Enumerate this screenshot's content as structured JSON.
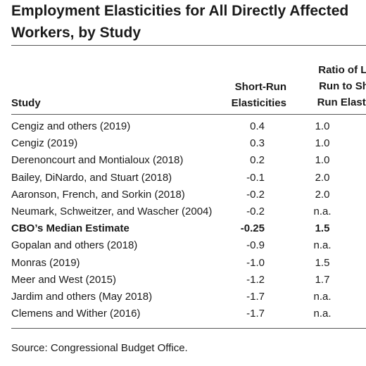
{
  "title": {
    "line1": "Employment Elasticities for All Directly Affected",
    "line2": "Workers, by Study"
  },
  "columns": {
    "study": "Study",
    "short_line1": "Short-Run",
    "short_line2": "Elasticities",
    "ratio_line1": "Ratio of Lon",
    "ratio_line2": "Run to Shor",
    "ratio_line3": "Run Elasticit"
  },
  "rows": [
    {
      "study": "Cengiz and others (2019)",
      "short": "0.4",
      "ratio": "1.0"
    },
    {
      "study": "Cengiz (2019)",
      "short": "0.3",
      "ratio": "1.0"
    },
    {
      "study": "Derenoncourt and Montialoux (2018)",
      "short": "0.2",
      "ratio": "1.0"
    },
    {
      "study": "Bailey, DiNardo, and Stuart (2018)",
      "short": "-0.1",
      "ratio": "2.0"
    },
    {
      "study": "Aaronson, French, and Sorkin (2018)",
      "short": "-0.2",
      "ratio": "2.0"
    },
    {
      "study": "Neumark, Schweitzer, and Wascher (2004)",
      "short": "-0.2",
      "ratio": "n.a."
    },
    {
      "study": "CBO’s Median Estimate",
      "short": "-0.25",
      "ratio": "1.5"
    },
    {
      "study": "Gopalan and others (2018)",
      "short": "-0.9",
      "ratio": "n.a."
    },
    {
      "study": "Monras (2019)",
      "short": "-1.0",
      "ratio": "1.5"
    },
    {
      "study": "Meer and West (2015)",
      "short": "-1.2",
      "ratio": "1.7"
    },
    {
      "study": "Jardim and others (May 2018)",
      "short": "-1.7",
      "ratio": "n.a."
    },
    {
      "study": "Clemens and Wither (2016)",
      "short": "-1.7",
      "ratio": "n.a."
    }
  ],
  "source": "Source: Congressional Budget Office."
}
